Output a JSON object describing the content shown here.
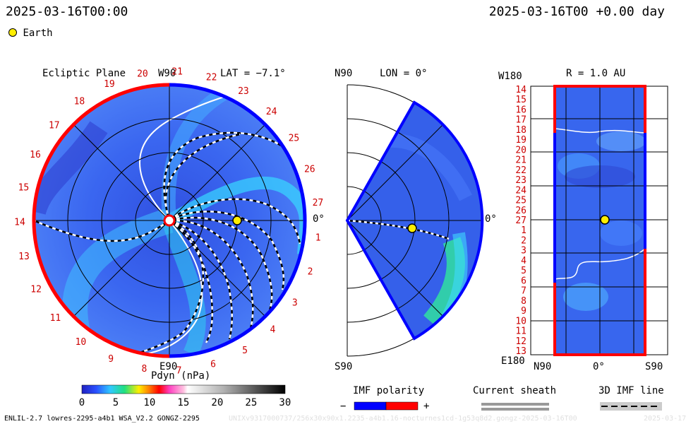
{
  "header": {
    "left_datetime": "2025-03-16T00:00",
    "right_datetime": "2025-03-16T00 +0.00 day"
  },
  "legend": {
    "earth_label": "Earth",
    "earth_color": "#ffee00"
  },
  "ecliptic": {
    "title": "Ecliptic Plane",
    "top_label": "W90",
    "bottom_label": "E90",
    "right_label": "0°",
    "lat_label": "LAT = −7.1°",
    "carrington_labels": [
      "1",
      "2",
      "3",
      "4",
      "5",
      "6",
      "7",
      "8",
      "9",
      "10",
      "11",
      "12",
      "13",
      "14",
      "15",
      "16",
      "17",
      "18",
      "19",
      "20",
      "21",
      "22",
      "23",
      "24",
      "25",
      "26",
      "27"
    ]
  },
  "meridional": {
    "top_label": "N90",
    "bottom_label": "S90",
    "lon_label": "LON = 0°",
    "right_label": "0°"
  },
  "shell": {
    "radius_label": "R = 1.0 AU",
    "top_left_label": "W180",
    "bottom_left_label": "E180",
    "bottom_axis_left": "N90",
    "bottom_axis_mid": "0°",
    "bottom_axis_right": "S90",
    "row_labels": [
      "14",
      "15",
      "16",
      "17",
      "18",
      "19",
      "20",
      "21",
      "22",
      "23",
      "24",
      "25",
      "26",
      "27",
      "1",
      "2",
      "3",
      "4",
      "5",
      "6",
      "7",
      "8",
      "9",
      "10",
      "11",
      "12",
      "13"
    ]
  },
  "colorbar": {
    "label": "Pdyn (nPa)",
    "ticks": [
      "0",
      "5",
      "10",
      "15",
      "20",
      "25",
      "30"
    ],
    "min": 0,
    "max": 30
  },
  "imf_polarity": {
    "title": "IMF polarity",
    "minus": "−",
    "plus": "+",
    "neg_color": "#0000ff",
    "pos_color": "#ff0000"
  },
  "current_sheath": {
    "title": "Current sheath"
  },
  "imf_line": {
    "title": "3D IMF line"
  },
  "footer": {
    "model_info": "ENLIL-2.7 lowres-2295-a4b1 WSA_V2.2 GONGZ-2295",
    "run_info": "UNIXv9317000737/256x30x90x1.2235-a4b1.16-nocturnes1cd-1g53q8d2.gongz-2025-03-16T00",
    "right_stub": "2025-03-17"
  },
  "chart_data": {
    "type": "heatmap",
    "quantity": "Dynamic pressure Pdyn (nPa)",
    "colorbar_range": [
      0,
      30
    ],
    "earth": {
      "radius_au": 1.0,
      "lon_deg": 0,
      "lat_deg": -7.1
    },
    "panels": [
      "Ecliptic Plane",
      "LON = 0° meridional",
      "R = 1.0 AU shell"
    ]
  }
}
